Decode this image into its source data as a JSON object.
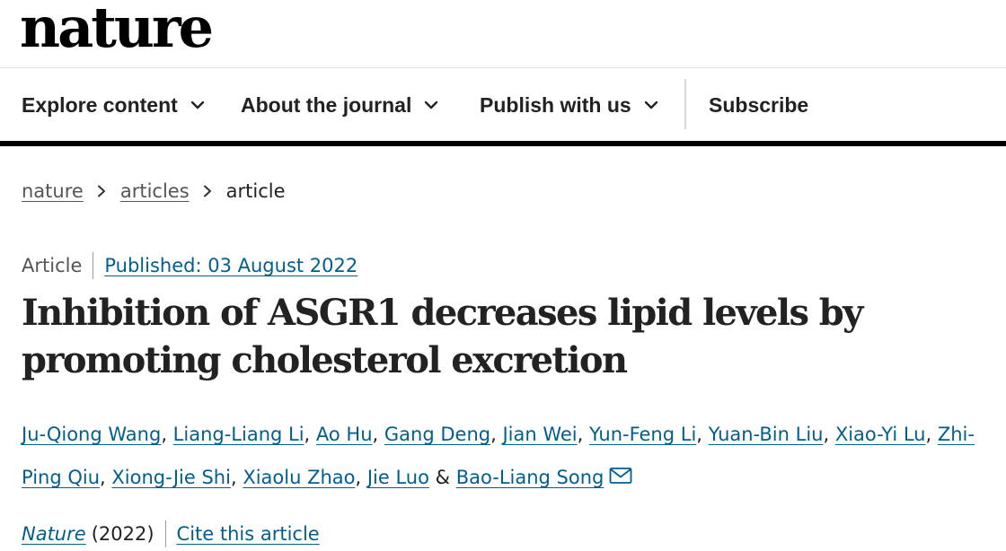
{
  "site": {
    "logo_text": "nature"
  },
  "nav": {
    "items": [
      {
        "label": "Explore content",
        "has_dropdown": true
      },
      {
        "label": "About the journal",
        "has_dropdown": true
      },
      {
        "label": "Publish with us",
        "has_dropdown": true
      }
    ],
    "subscribe_label": "Subscribe"
  },
  "breadcrumb": {
    "items": [
      "nature",
      "articles"
    ],
    "current": "article"
  },
  "article": {
    "type": "Article",
    "published": "Published: 03 August 2022",
    "title": "Inhibition of ASGR1 decreases lipid levels by promoting cholesterol excretion",
    "authors": [
      "Ju-Qiong Wang",
      "Liang-Liang Li",
      "Ao Hu",
      "Gang Deng",
      "Jian Wei",
      "Yun-Feng Li",
      "Yuan-Bin Liu",
      "Xiao-Yi Lu",
      "Zhi-Ping Qiu",
      "Xiong-Jie Shi",
      "Xiaolu Zhao",
      "Jie Luo",
      "Bao-Liang Song"
    ],
    "author_conjunction": "&",
    "journal": "Nature",
    "year": "(2022)",
    "cite_label": "Cite this article"
  },
  "colors": {
    "link": "#025e8d",
    "text": "#222222",
    "muted": "#555555",
    "rule": "#000000"
  },
  "icons": {
    "nav_dropdown": "chevron-down-icon",
    "breadcrumb_separator": "chevron-right-icon",
    "corresponding_author": "mail-icon"
  }
}
